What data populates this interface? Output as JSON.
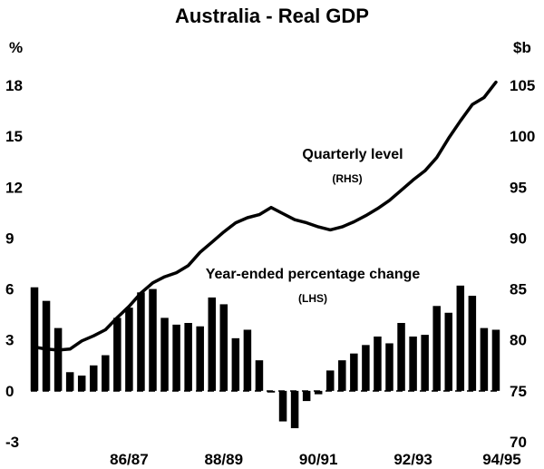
{
  "chart_data": {
    "type": "bar",
    "title": "Australia - Real GDP",
    "left_axis": {
      "unit": "%",
      "ticks": [
        18,
        15,
        12,
        9,
        6,
        3,
        0,
        -3
      ],
      "ylim": [
        -3,
        18
      ]
    },
    "right_axis": {
      "unit": "$b",
      "ticks": [
        105,
        100,
        95,
        90,
        85,
        80,
        75,
        70
      ],
      "ylim": [
        70,
        105
      ]
    },
    "x_tick_labels": [
      "86/87",
      "88/89",
      "90/91",
      "92/93",
      "94/95"
    ],
    "annotations": {
      "line_label": "Quarterly level",
      "line_axis_note": "(RHS)",
      "bar_label": "Year-ended percentage change",
      "bar_axis_note": "(LHS)"
    },
    "series": [
      {
        "kind": "bar",
        "axis": "left",
        "values": [
          6.1,
          5.3,
          3.7,
          1.1,
          0.9,
          1.5,
          2.1,
          4.3,
          4.9,
          5.8,
          6.0,
          4.3,
          3.9,
          4.0,
          3.8,
          5.5,
          5.1,
          3.1,
          3.6,
          1.8,
          -0.1,
          -1.8,
          -2.2,
          -0.6,
          -0.2,
          1.2,
          1.8,
          2.2,
          2.7,
          3.2,
          2.8,
          4.0,
          3.2,
          3.3,
          5.0,
          4.6,
          6.2,
          5.6,
          3.7,
          3.6
        ]
      },
      {
        "kind": "line",
        "axis": "right",
        "values": [
          79.3,
          79.1,
          79.0,
          79.1,
          79.9,
          80.4,
          81.0,
          82.2,
          83.3,
          84.6,
          85.6,
          86.2,
          86.6,
          87.3,
          88.6,
          89.6,
          90.6,
          91.5,
          92.0,
          92.3,
          93.0,
          92.4,
          91.8,
          91.5,
          91.1,
          90.8,
          91.1,
          91.6,
          92.2,
          92.9,
          93.7,
          94.7,
          95.7,
          96.6,
          97.9,
          99.8,
          101.5,
          103.1,
          103.8,
          105.3
        ]
      }
    ]
  }
}
